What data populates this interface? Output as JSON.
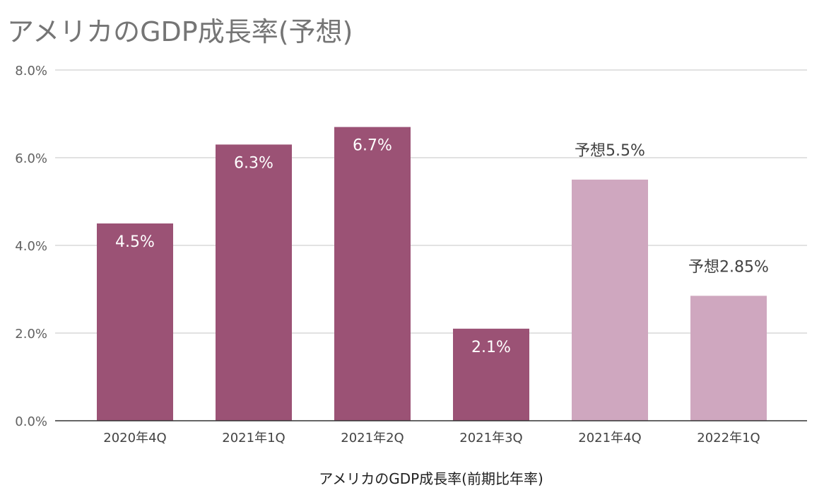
{
  "chart_data": {
    "type": "bar",
    "title": "アメリカのGDP成長率(予想)",
    "xlabel": "アメリカのGDP成長率(前期比年率)",
    "ylabel": "",
    "ylim": [
      0,
      8
    ],
    "yticks": [
      "0.0%",
      "2.0%",
      "4.0%",
      "6.0%",
      "8.0%"
    ],
    "grid": true,
    "categories": [
      "2020年4Q",
      "2021年1Q",
      "2021年2Q",
      "2021年3Q",
      "2021年4Q",
      "2022年1Q"
    ],
    "values": [
      4.5,
      6.3,
      6.7,
      2.1,
      5.5,
      2.85
    ],
    "data_labels": [
      "4.5%",
      "6.3%",
      "6.7%",
      "2.1%",
      "予想5.5%",
      "予想2.85%"
    ],
    "forecast": [
      false,
      false,
      false,
      false,
      true,
      true
    ],
    "colors": {
      "actual": "#9b5275",
      "forecast": "#cfa7bf",
      "grid": "#d9d9d9",
      "axis": "#333333"
    }
  }
}
